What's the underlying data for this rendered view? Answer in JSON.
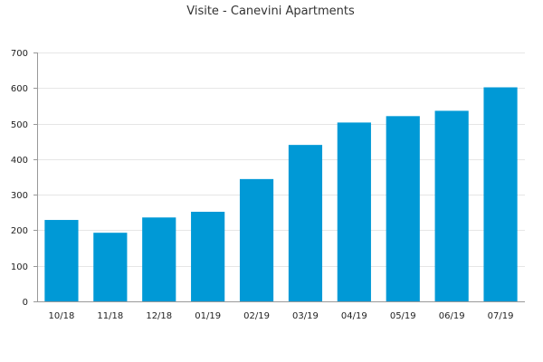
{
  "chart_data": {
    "type": "bar",
    "title": "Visite - Canevini Apartments",
    "xlabel": "",
    "ylabel": "",
    "categories": [
      "10/18",
      "11/18",
      "12/18",
      "01/19",
      "02/19",
      "03/19",
      "04/19",
      "05/19",
      "06/19",
      "07/19"
    ],
    "values": [
      229,
      193,
      236,
      252,
      344,
      440,
      503,
      521,
      536,
      602
    ],
    "ylim": [
      0,
      700
    ],
    "yticks": [
      0,
      100,
      200,
      300,
      400,
      500,
      600,
      700
    ],
    "grid": true,
    "legend": "none",
    "colors": {
      "bar": "#0099d6",
      "grid": "#e6e6e6",
      "axis": "#999999",
      "text": "#222222"
    }
  }
}
